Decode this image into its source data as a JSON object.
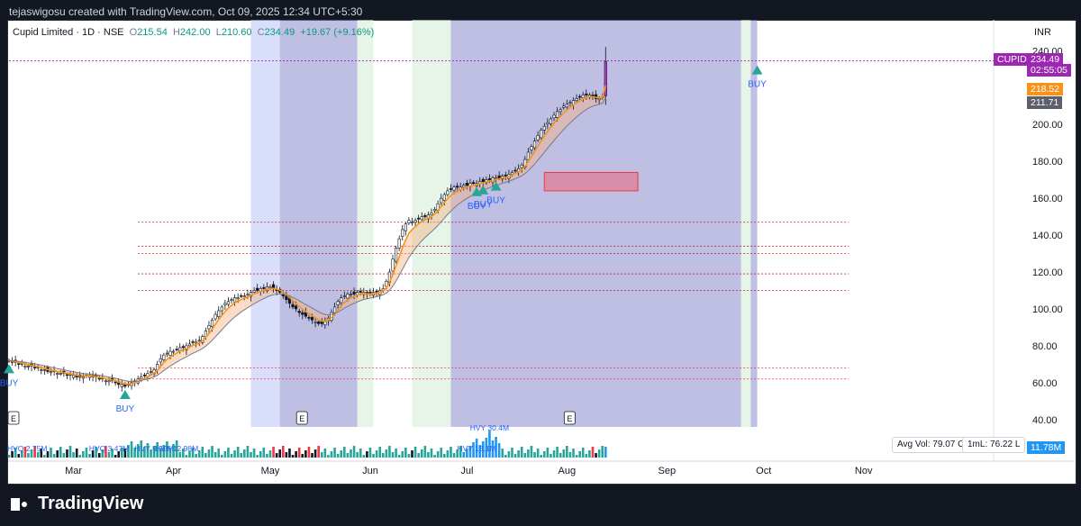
{
  "header": {
    "credit": "tejaswigosu created with TradingView.com, Oct 09, 2025 12:34 UTC+5:30"
  },
  "legend": {
    "symbol": "Cupid Limited · 1D · NSE",
    "open_label": "O",
    "open": "215.54",
    "high_label": "H",
    "high": "242.00",
    "low_label": "L",
    "low": "210.60",
    "close_label": "C",
    "close": "234.49",
    "change": "+19.67 (+9.16%)"
  },
  "currency": "INR",
  "price_tags": {
    "symbol_tag": "CUPID",
    "last_price": "234.49",
    "countdown": "02:55:05",
    "ema_fast": "218.52",
    "ema_slow": "211.71",
    "volume_tag": "11.78M"
  },
  "stats": {
    "avg_vol": "Avg Vol: 79.07 Cr",
    "one_ml": "1mL: 76.22 L"
  },
  "footer": {
    "brand": "TradingView"
  },
  "colors": {
    "up": "#089981",
    "down": "#f23645",
    "ema_fast": "#f7931a",
    "ema_slow": "#787b86",
    "buy": "#26a69a",
    "buy_text": "#2962ff",
    "band_purple": "#7e80c8",
    "band_blue": "#bfcaf8",
    "band_green": "#d6efd9",
    "symbol_tag": "#9c27b0"
  },
  "chart_data": {
    "type": "candlestick",
    "symbol": "Cupid Limited",
    "interval": "1D",
    "exchange": "NSE",
    "ylim": [
      36,
      246
    ],
    "y_ticks": [
      40,
      60,
      80,
      100,
      120,
      140,
      160,
      180,
      200,
      220,
      240
    ],
    "y_tick_labels": [
      "40.00",
      "60.00",
      "80.00",
      "100.00",
      "120.00",
      "140.00",
      "160.00",
      "180.00",
      "200.00",
      "220.00",
      "240.00"
    ],
    "x_ticks": [
      {
        "day": 20,
        "label": "Mar"
      },
      {
        "day": 51,
        "label": "Apr"
      },
      {
        "day": 81,
        "label": "May"
      },
      {
        "day": 112,
        "label": "Jun"
      },
      {
        "day": 142,
        "label": "Jul"
      },
      {
        "day": 173,
        "label": "Aug"
      },
      {
        "day": 204,
        "label": "Sep"
      },
      {
        "day": 234,
        "label": "Oct"
      },
      {
        "day": 265,
        "label": "Nov"
      }
    ],
    "closes": [
      72,
      71,
      71,
      70,
      70,
      69,
      69,
      69,
      68,
      68,
      67,
      67,
      66,
      66,
      66,
      65,
      65,
      65,
      64,
      64,
      64,
      63,
      63,
      63,
      64,
      64,
      63,
      63,
      62,
      62,
      61,
      61,
      61,
      60,
      59,
      59,
      58,
      59,
      60,
      61,
      62,
      63,
      64,
      65,
      66,
      67,
      70,
      73,
      75,
      76,
      77,
      77,
      78,
      79,
      79,
      80,
      81,
      82,
      82,
      83,
      85,
      88,
      91,
      94,
      97,
      99,
      101,
      103,
      104,
      105,
      106,
      106,
      107,
      107,
      108,
      109,
      110,
      110,
      111,
      111,
      112,
      112,
      111,
      110,
      109,
      107,
      105,
      103,
      101,
      100,
      98,
      97,
      96,
      95,
      94,
      93,
      92,
      92,
      93,
      95,
      98,
      101,
      104,
      106,
      107,
      108,
      108,
      108,
      109,
      109,
      109,
      108,
      108,
      109,
      109,
      110,
      111,
      115,
      120,
      127,
      133,
      138,
      143,
      146,
      148,
      147,
      148,
      149,
      150,
      150,
      151,
      152,
      154,
      157,
      160,
      162,
      164,
      165,
      166,
      166,
      166,
      167,
      167,
      168,
      168,
      168,
      169,
      169,
      170,
      170,
      171,
      171,
      171,
      172,
      172,
      173,
      174,
      175,
      176,
      178,
      181,
      185,
      188,
      191,
      194,
      197,
      199,
      201,
      203,
      205,
      207,
      208,
      210,
      211,
      212,
      213,
      214,
      215,
      216,
      216,
      216,
      215,
      214,
      214,
      215,
      234
    ],
    "highs_noted": {
      "last_high": 242.0,
      "last_low": 210.6,
      "last_open": 215.54
    },
    "ema_fast_last": 218.52,
    "ema_slow_last": 211.71,
    "buy_signals": [
      {
        "day": 36,
        "label": "BUY"
      },
      {
        "day": 145,
        "label": "BUY"
      },
      {
        "day": 147,
        "label": "BUY"
      },
      {
        "day": 151,
        "label": "BUY"
      },
      {
        "day": 232,
        "label": "BUY"
      },
      {
        "day": 0,
        "label": "BUY"
      }
    ],
    "earnings_markers": [
      {
        "day": 0,
        "label": "E"
      },
      {
        "day": 90,
        "label": "E"
      },
      {
        "day": 173,
        "label": "E"
      }
    ],
    "volume_labels": [
      {
        "day": 0,
        "label": "HVQ 2.75M"
      },
      {
        "day": 31,
        "label": "HVQ 3.47M"
      },
      {
        "day": 45,
        "label": "HVY 6.69M"
      },
      {
        "day": 52,
        "label": "HVY 12.98M"
      },
      {
        "day": 145,
        "label": "HVY 13.1M"
      },
      {
        "day": 149,
        "label": "HVY 30.4M"
      }
    ],
    "volume_last": "11.78M",
    "bands": [
      {
        "from": 75,
        "to": 84,
        "color": "blue"
      },
      {
        "from": 84,
        "to": 108,
        "color": "purple"
      },
      {
        "from": 108,
        "to": 113,
        "color": "green"
      },
      {
        "from": 125,
        "to": 137,
        "color": "green"
      },
      {
        "from": 137,
        "to": 227,
        "color": "purple"
      },
      {
        "from": 227,
        "to": 230,
        "color": "green"
      },
      {
        "from": 230,
        "to": 232,
        "color": "purple"
      }
    ],
    "consolidation_box": {
      "from_day": 166,
      "to_day": 195,
      "low": 164,
      "high": 174
    },
    "support_lines": [
      147,
      134,
      130,
      119,
      110,
      68,
      62
    ]
  }
}
